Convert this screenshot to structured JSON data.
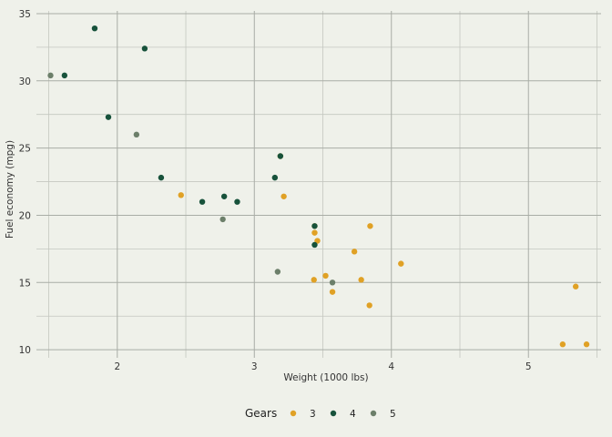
{
  "chart_data": {
    "type": "scatter",
    "title": "",
    "xlabel": "Weight (1000 lbs)",
    "ylabel": "Fuel economy (mpg)",
    "xlim": [
      1.41,
      5.53
    ],
    "ylim": [
      9.4,
      35.2
    ],
    "x_ticks": [
      2,
      3,
      4,
      5
    ],
    "y_ticks": [
      10,
      15,
      20,
      25,
      30,
      35
    ],
    "grid": true,
    "legend": {
      "title": "Gears",
      "position": "bottom"
    },
    "series": [
      {
        "name": "3",
        "color": "#e0a125",
        "points": [
          [
            3.215,
            21.4
          ],
          [
            3.44,
            18.7
          ],
          [
            3.46,
            18.1
          ],
          [
            3.57,
            14.3
          ],
          [
            3.19,
            24.4
          ],
          [
            3.44,
            19.2
          ],
          [
            4.07,
            16.4
          ],
          [
            3.73,
            17.3
          ],
          [
            3.78,
            15.2
          ],
          [
            5.25,
            10.4
          ],
          [
            5.424,
            10.4
          ],
          [
            5.345,
            14.7
          ],
          [
            2.465,
            21.5
          ],
          [
            3.52,
            15.5
          ],
          [
            3.435,
            15.2
          ],
          [
            3.84,
            13.3
          ],
          [
            3.845,
            19.2
          ]
        ]
      },
      {
        "name": "4",
        "color": "#17523b",
        "points": [
          [
            2.62,
            21.0
          ],
          [
            2.875,
            21.0
          ],
          [
            2.32,
            22.8
          ],
          [
            3.19,
            24.4
          ],
          [
            3.15,
            22.8
          ],
          [
            3.44,
            19.2
          ],
          [
            3.44,
            17.8
          ],
          [
            2.2,
            32.4
          ],
          [
            1.615,
            30.4
          ],
          [
            1.835,
            33.9
          ],
          [
            1.935,
            27.3
          ],
          [
            2.78,
            21.4
          ]
        ]
      },
      {
        "name": "5",
        "color": "#6c7f6a",
        "points": [
          [
            2.14,
            26.0
          ],
          [
            1.513,
            30.4
          ],
          [
            3.17,
            15.8
          ],
          [
            2.77,
            19.7
          ],
          [
            3.57,
            15.0
          ]
        ]
      }
    ]
  }
}
